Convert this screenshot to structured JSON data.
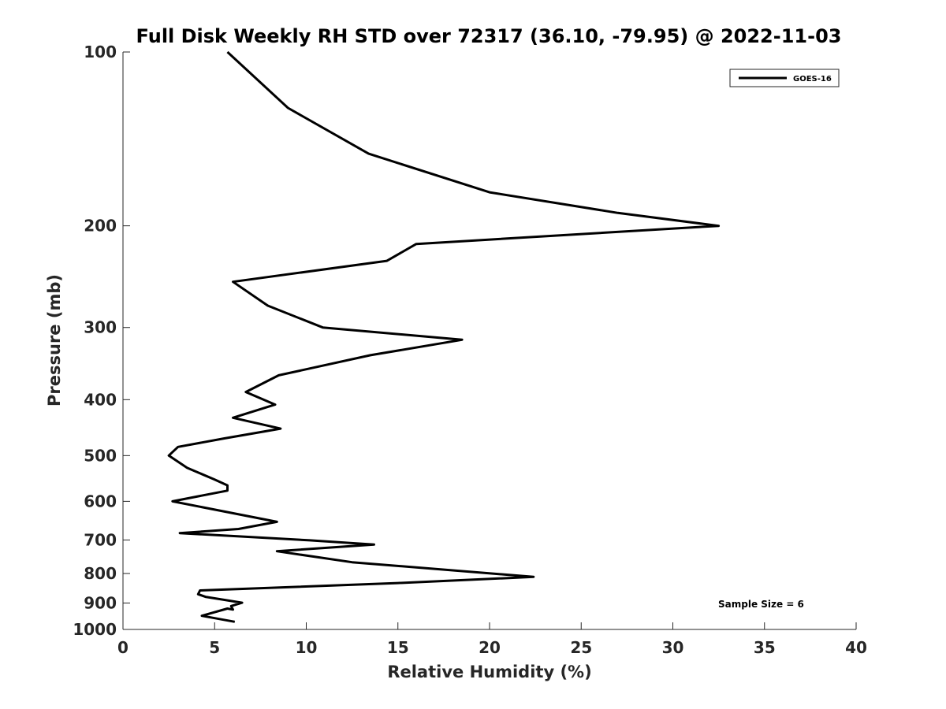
{
  "chart_data": {
    "type": "line",
    "title": "Full Disk Weekly RH STD over 72317 (36.10, -79.95) @ 2022-11-03",
    "xlabel": "Relative Humidity (%)",
    "ylabel": "Pressure (mb)",
    "xlim": [
      0,
      40
    ],
    "ylim": [
      100,
      1000
    ],
    "y_scale": "log",
    "y_reversed": true,
    "xticks": [
      0,
      5,
      10,
      15,
      20,
      25,
      30,
      35,
      40
    ],
    "yticks": [
      100,
      200,
      300,
      400,
      500,
      600,
      700,
      800,
      900,
      1000
    ],
    "grid": false,
    "legend_position": "top-right",
    "annotation": "Sample Size = 6",
    "series": [
      {
        "name": "GOES-16",
        "color": "#000000",
        "points": [
          [
            5.7,
            100
          ],
          [
            9.0,
            125
          ],
          [
            13.4,
            150
          ],
          [
            20.0,
            175
          ],
          [
            27.0,
            190
          ],
          [
            32.5,
            200
          ],
          [
            16.0,
            215
          ],
          [
            14.4,
            230
          ],
          [
            6.0,
            250
          ],
          [
            7.9,
            275
          ],
          [
            10.9,
            300
          ],
          [
            18.5,
            315
          ],
          [
            13.5,
            335
          ],
          [
            8.5,
            363
          ],
          [
            6.7,
            388
          ],
          [
            8.3,
            408
          ],
          [
            6.0,
            430
          ],
          [
            8.6,
            449
          ],
          [
            5.5,
            467
          ],
          [
            3.0,
            483
          ],
          [
            2.5,
            500
          ],
          [
            3.5,
            525
          ],
          [
            5.0,
            550
          ],
          [
            5.7,
            563
          ],
          [
            5.7,
            575
          ],
          [
            2.7,
            600
          ],
          [
            8.4,
            651
          ],
          [
            6.3,
            670
          ],
          [
            3.1,
            681
          ],
          [
            10.2,
            701
          ],
          [
            13.7,
            713
          ],
          [
            8.4,
            732
          ],
          [
            12.5,
            765
          ],
          [
            22.4,
            811
          ],
          [
            15.0,
            831
          ],
          [
            4.2,
            856
          ],
          [
            4.1,
            869
          ],
          [
            4.5,
            878
          ],
          [
            6.5,
            899
          ],
          [
            5.9,
            911
          ],
          [
            6.0,
            924
          ],
          [
            5.7,
            920
          ],
          [
            4.3,
            947
          ],
          [
            6.1,
            970
          ]
        ]
      }
    ]
  }
}
